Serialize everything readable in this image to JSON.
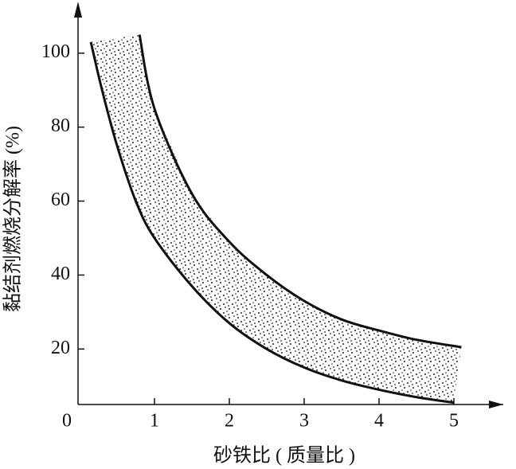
{
  "chart_data": {
    "type": "band",
    "x_label": "砂铁比 ( 质量比 )",
    "y_label": "黏结剂燃烧分解率 (%)",
    "xlim": [
      0,
      5.5
    ],
    "ylim": [
      5,
      112
    ],
    "xticks": [
      0,
      1,
      2,
      3,
      4,
      5
    ],
    "yticks": [
      20,
      40,
      60,
      80,
      100
    ],
    "series": [
      {
        "color": "#111",
        "x": [
          0.8,
          1,
          1.5,
          2,
          2.5,
          3,
          3.5,
          4,
          4.5,
          5.1
        ],
        "values": [
          105,
          85,
          62,
          49,
          40,
          33,
          28,
          25,
          22.5,
          20.5
        ]
      },
      {
        "color": "#111",
        "x": [
          0.15,
          0.3,
          0.5,
          0.75,
          1,
          1.5,
          2,
          2.5,
          3,
          3.5,
          4,
          4.5,
          5
        ],
        "values": [
          103,
          90,
          75,
          60,
          50,
          37,
          27,
          20,
          15,
          11.5,
          9,
          7,
          5.5
        ]
      }
    ]
  }
}
